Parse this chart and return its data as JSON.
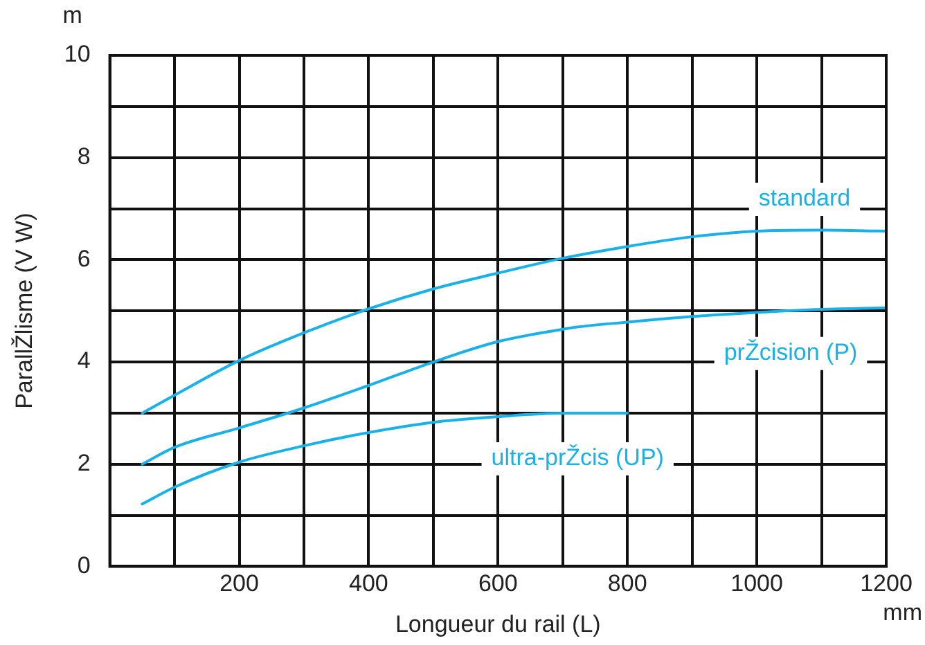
{
  "chart_data": {
    "type": "line",
    "xlabel": "Longueur du rail (L)",
    "ylabel": "ParallŽlisme (V W)",
    "annotations": [
      "m",
      "mm"
    ],
    "xlim": [
      0,
      1200
    ],
    "ylim": [
      0,
      10
    ],
    "xticks": [
      {
        "value": 0,
        "label": null
      },
      {
        "value": 100,
        "label": null
      },
      200,
      {
        "value": 300,
        "label": null
      },
      400,
      {
        "value": 500,
        "label": null
      },
      600,
      {
        "value": 700,
        "label": null
      },
      800,
      {
        "value": 900,
        "label": null
      },
      1000,
      {
        "value": 1100,
        "label": null
      },
      1200
    ],
    "yticks": [
      0,
      {
        "value": 1,
        "label": null
      },
      2,
      {
        "value": 3,
        "label": null
      },
      4,
      {
        "value": 5,
        "label": null
      },
      6,
      {
        "value": 7,
        "label": null
      },
      8,
      {
        "value": 9,
        "label": null
      },
      10
    ],
    "grid": true,
    "legend": false,
    "marker": "none",
    "line_style": "solid",
    "series": [
      {
        "name": "standard",
        "color": "#1ab0e8",
        "x": [
          50,
          100,
          200,
          300,
          400,
          500,
          600,
          700,
          800,
          900,
          1000,
          1100,
          1200
        ],
        "values": [
          3.0,
          3.35,
          4.03,
          4.57,
          5.04,
          5.43,
          5.74,
          6.03,
          6.26,
          6.45,
          6.56,
          6.58,
          6.56
        ]
      },
      {
        "name": "prŽcision (P)",
        "color": "#1ab0e8",
        "x": [
          50,
          100,
          200,
          300,
          400,
          500,
          600,
          700,
          720,
          800,
          900,
          1000,
          1100,
          1200
        ],
        "values": [
          2.0,
          2.33,
          2.71,
          3.1,
          3.54,
          4.0,
          4.4,
          4.64,
          4.68,
          4.78,
          4.89,
          4.97,
          5.03,
          5.06
        ]
      },
      {
        "name": "ultra-prŽcis (UP)",
        "color": "#1ab0e8",
        "x": [
          50,
          100,
          200,
          300,
          400,
          500,
          600,
          700,
          800
        ],
        "values": [
          1.22,
          1.55,
          2.04,
          2.36,
          2.62,
          2.82,
          2.93,
          3.0,
          3.0
        ]
      }
    ]
  }
}
